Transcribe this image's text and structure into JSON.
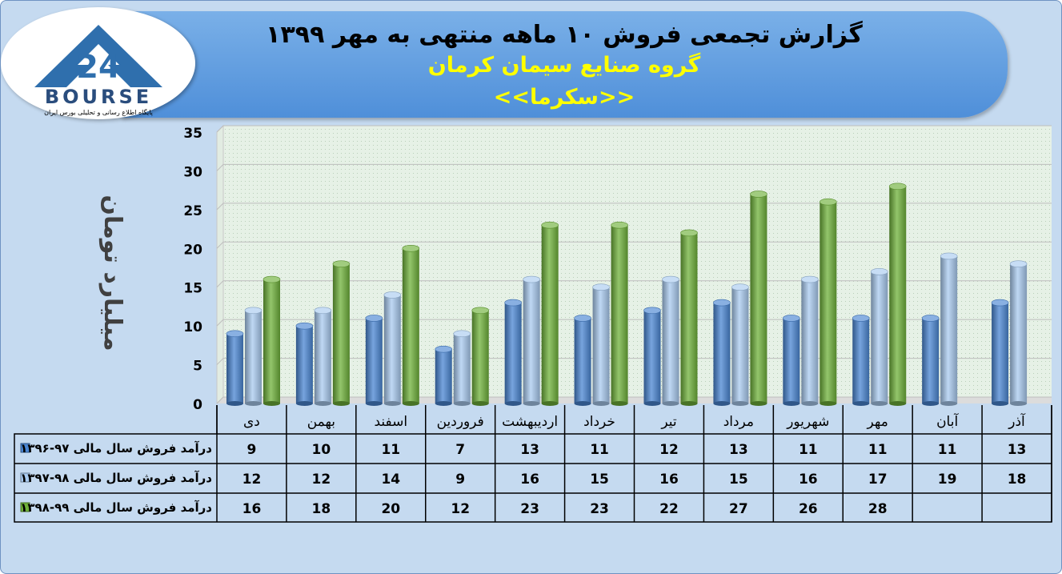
{
  "header": {
    "title": "گزارش تجمعی فروش ۱۰ ماهه منتهی به مهر ۱۳۹۹",
    "subtitle1": "گروه صنایع سیمان کرمان",
    "subtitle2": "<<سکرما>>"
  },
  "logo": {
    "brand": "BOURSE",
    "number": "24",
    "tagline": "پایگاه اطلاع رسانی و تحلیلی بورس ایران",
    "icon": "bourse24-logo-icon"
  },
  "colors": {
    "series1": "#4a86d3",
    "series2": "#a9cbf0",
    "series3": "#6fb13a",
    "frame": "#c5daf0",
    "banner": "#5b9be0"
  },
  "chart_data": {
    "type": "bar",
    "ylabel": "میلیارد تومان",
    "ylim": [
      0,
      35
    ],
    "yticks": [
      0,
      5,
      10,
      15,
      20,
      25,
      30,
      35
    ],
    "grid": true,
    "categories": [
      "دی",
      "بهمن",
      "اسفند",
      "فروردین",
      "اردیبهشت",
      "خرداد",
      "تیر",
      "مرداد",
      "شهریور",
      "مهر",
      "آبان",
      "آذر"
    ],
    "series": [
      {
        "name": "درآمد فروش سال مالی ۹۷-۱۳۹۶",
        "values": [
          9,
          10,
          11,
          7,
          13,
          11,
          12,
          13,
          11,
          11,
          11,
          13
        ]
      },
      {
        "name": "درآمد فروش سال مالی ۹۸-۱۳۹۷",
        "values": [
          12,
          12,
          14,
          9,
          16,
          15,
          16,
          15,
          16,
          17,
          19,
          18
        ]
      },
      {
        "name": "درآمد فروش سال مالی ۹۹-۱۳۹۸",
        "values": [
          16,
          18,
          20,
          12,
          23,
          23,
          22,
          27,
          26,
          28,
          null,
          null
        ]
      }
    ],
    "data_table": true
  }
}
